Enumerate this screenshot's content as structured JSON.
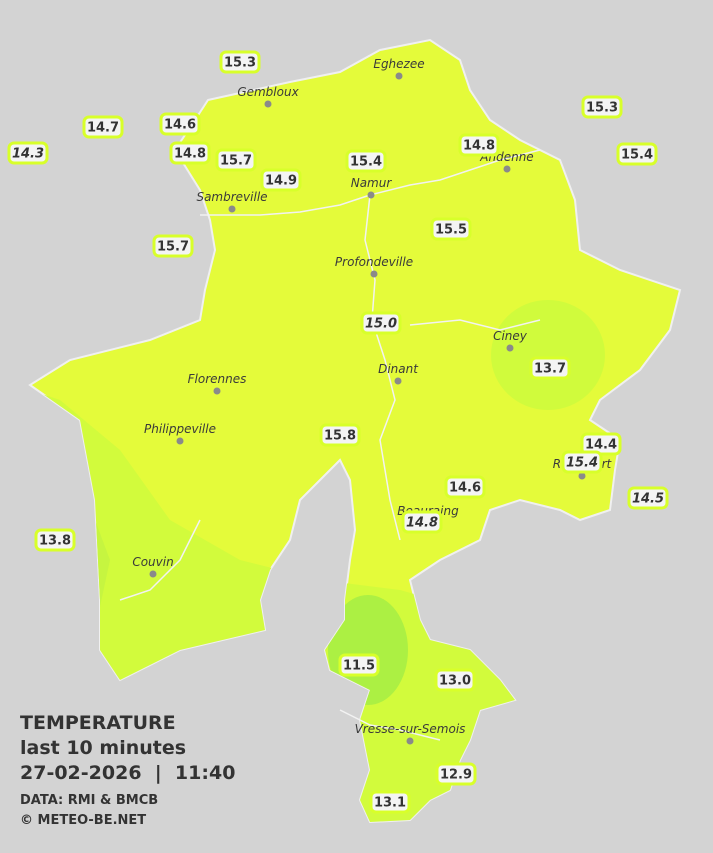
{
  "legend": {
    "title": "TEMPERATURE",
    "period": "last 10 minutes",
    "datetime": "27-02-2026  |  11:40",
    "source": "DATA: RMI & BMCB",
    "copyright": "© METEO-BE.NET"
  },
  "cities": [
    "Eghezee",
    "Gembloux",
    "Andenne",
    "Namur",
    "Sambreville",
    "Profondeville",
    "Ciney",
    "Dinant",
    "Florennes",
    "Philippeville",
    "Rochefort",
    "Beauraing",
    "Couvin",
    "Vresse-sur-Semois"
  ],
  "stations": [
    {
      "value": "15.3",
      "italic": false
    },
    {
      "value": "14.7",
      "italic": false
    },
    {
      "value": "14.3",
      "italic": true
    },
    {
      "value": "14.6",
      "italic": false
    },
    {
      "value": "14.8",
      "italic": false
    },
    {
      "value": "15.7",
      "italic": false
    },
    {
      "value": "14.9",
      "italic": false
    },
    {
      "value": "15.4",
      "italic": false
    },
    {
      "value": "14.8",
      "italic": false
    },
    {
      "value": "15.3",
      "italic": false
    },
    {
      "value": "15.4",
      "italic": false
    },
    {
      "value": "15.5",
      "italic": false
    },
    {
      "value": "15.7",
      "italic": false
    },
    {
      "value": "15.0",
      "italic": true
    },
    {
      "value": "13.7",
      "italic": false
    },
    {
      "value": "15.8",
      "italic": false
    },
    {
      "value": "14.4",
      "italic": false
    },
    {
      "value": "15.4",
      "italic": true
    },
    {
      "value": "14.5",
      "italic": true
    },
    {
      "value": "14.6",
      "italic": false
    },
    {
      "value": "14.8",
      "italic": true
    },
    {
      "value": "13.8",
      "italic": false
    },
    {
      "value": "11.5",
      "italic": false
    },
    {
      "value": "13.0",
      "italic": false
    },
    {
      "value": "12.9",
      "italic": false
    },
    {
      "value": "13.1",
      "italic": false
    }
  ]
}
